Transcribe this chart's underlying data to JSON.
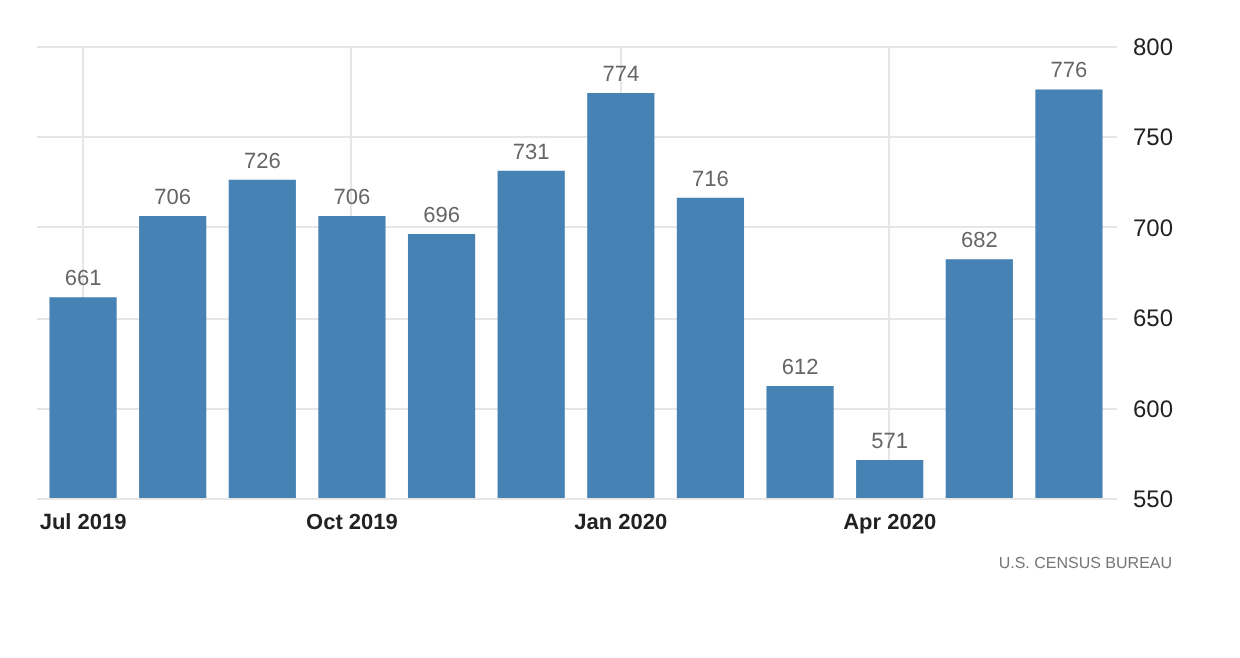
{
  "chart_data": {
    "type": "bar",
    "categories": [
      "Jul 2019",
      null,
      null,
      "Oct 2019",
      null,
      null,
      "Jan 2020",
      null,
      null,
      "Apr 2020",
      null,
      null
    ],
    "values": [
      661,
      706,
      726,
      706,
      696,
      731,
      774,
      716,
      612,
      571,
      682,
      776
    ],
    "color": "#4682b4",
    "ylim": [
      550,
      800
    ],
    "yticks": [
      550,
      600,
      650,
      700,
      750,
      800
    ],
    "grid": true,
    "data_labels": true,
    "annotations": [
      "U.S. CENSUS BUREAU"
    ]
  }
}
